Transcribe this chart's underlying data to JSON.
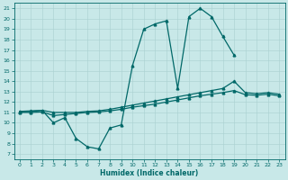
{
  "title": "",
  "xlabel": "Humidex (Indice chaleur)",
  "bg_color": "#c8e8e8",
  "grid_color": "#a8d0d0",
  "line_color": "#006868",
  "xlim": [
    -0.5,
    23.5
  ],
  "ylim": [
    6.5,
    21.5
  ],
  "xticks": [
    0,
    1,
    2,
    3,
    4,
    5,
    6,
    7,
    8,
    9,
    10,
    11,
    12,
    13,
    14,
    15,
    16,
    17,
    18,
    19,
    20,
    21,
    22,
    23
  ],
  "yticks": [
    7,
    8,
    9,
    10,
    11,
    12,
    13,
    14,
    15,
    16,
    17,
    18,
    19,
    20,
    21
  ],
  "line1_x": [
    0,
    1,
    2,
    3,
    4,
    5,
    6,
    7,
    8,
    9,
    10,
    11,
    12,
    13,
    14,
    15,
    16,
    17,
    18,
    19
  ],
  "line1_y": [
    11.1,
    11.15,
    11.2,
    10.0,
    10.5,
    8.5,
    7.7,
    7.5,
    9.5,
    9.8,
    15.5,
    19.0,
    19.5,
    19.8,
    13.3,
    20.2,
    21.0,
    20.2,
    18.3,
    16.5
  ],
  "line2_x": [
    0,
    1,
    2,
    3,
    4,
    5,
    6,
    7,
    8,
    9,
    10,
    11,
    12,
    13,
    14,
    15,
    16,
    17,
    18,
    19,
    20,
    21,
    22,
    23
  ],
  "line2_y": [
    11.05,
    11.1,
    11.2,
    11.0,
    11.0,
    11.0,
    11.1,
    11.15,
    11.3,
    11.5,
    11.7,
    11.9,
    12.1,
    12.3,
    12.5,
    12.7,
    12.9,
    13.1,
    13.3,
    14.0,
    12.9,
    12.8,
    12.9,
    12.75
  ],
  "line3_x": [
    0,
    1,
    2,
    3,
    4,
    5,
    6,
    7,
    8,
    9,
    10,
    11,
    12,
    13,
    14,
    15,
    16,
    17,
    18,
    19,
    20,
    21,
    22,
    23
  ],
  "line3_y": [
    11.0,
    11.0,
    11.05,
    10.7,
    10.8,
    10.9,
    11.0,
    11.05,
    11.15,
    11.3,
    11.5,
    11.65,
    11.8,
    12.0,
    12.2,
    12.4,
    12.6,
    12.75,
    12.9,
    13.1,
    12.7,
    12.65,
    12.75,
    12.6
  ]
}
